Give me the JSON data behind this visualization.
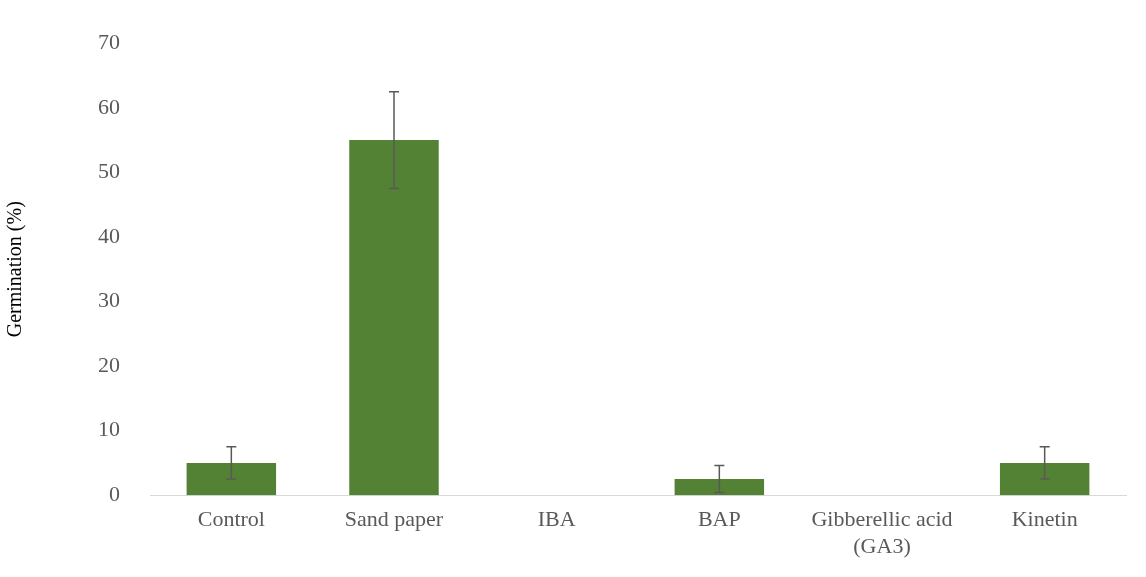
{
  "chart_data": {
    "type": "bar",
    "ylabel": "Germination (%)",
    "categories": [
      "Control",
      "Sand paper",
      "IBA",
      "BAP",
      "Gibberellic acid (GA3)",
      "Kinetin"
    ],
    "values": [
      5,
      55,
      0,
      2.5,
      0,
      5
    ],
    "errors": [
      2.5,
      7.5,
      null,
      2.1,
      null,
      2.5
    ],
    "color": "#548235",
    "ylim": [
      0,
      70
    ],
    "yticks": [
      0,
      10,
      20,
      30,
      40,
      50,
      60,
      70
    ],
    "grid": false,
    "legend": false
  }
}
